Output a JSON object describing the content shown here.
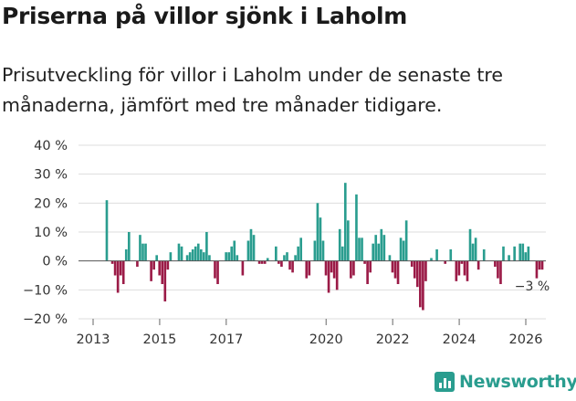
{
  "title": "Priserna på villor sjönk i Laholm",
  "subtitle": "Prisutveckling för villor i Laholm under de senaste tre månaderna, jämfört med tre månader tidigare.",
  "brand": {
    "name": "Newsworthy",
    "icon": "bar-chart-logo-icon"
  },
  "colors": {
    "positive": "#2a9d8f",
    "negative": "#9b1b47",
    "grid": "#dddddd",
    "text": "#333333"
  },
  "chart_data": {
    "type": "bar",
    "title": "Prisutveckling för villor i Laholm",
    "unit": "%",
    "ylim": [
      -20,
      40
    ],
    "yticks": [
      -20,
      -10,
      0,
      10,
      20,
      30,
      40
    ],
    "ytick_labels": [
      "−20 %",
      "−10 %",
      "0 %",
      "10 %",
      "20 %",
      "30 %",
      "40 %"
    ],
    "xticks": [
      2013,
      2015,
      2017,
      2020,
      2022,
      2024,
      2026
    ],
    "xtick_labels": [
      "2013",
      "2015",
      "2017",
      "2020",
      "2022",
      "2024",
      "2026"
    ],
    "x_start": {
      "year": 2013,
      "month": 6
    },
    "grid": true,
    "annotation": {
      "label": "−3 %",
      "value": -3
    },
    "values": [
      21,
      0,
      -1,
      -5,
      -11,
      -5,
      -8,
      4,
      10,
      0,
      0,
      -2,
      9,
      6,
      6,
      0,
      -7,
      -3,
      2,
      -5,
      -8,
      -14,
      -3,
      3,
      0,
      0,
      6,
      5,
      0,
      2,
      3,
      4,
      5,
      6,
      4,
      3,
      10,
      2,
      0,
      -6,
      -8,
      0,
      0,
      3,
      3,
      5,
      7,
      2,
      0,
      -5,
      0,
      7,
      11,
      9,
      0,
      -1,
      -1,
      -1,
      1,
      0,
      0,
      5,
      -1,
      -2,
      2,
      3,
      -3,
      -4,
      2,
      5,
      8,
      0,
      -6,
      -5,
      0,
      7,
      20,
      15,
      7,
      -5,
      -11,
      -4,
      -6,
      -10,
      11,
      5,
      27,
      14,
      -6,
      -5,
      23,
      8,
      8,
      -1,
      -8,
      -4,
      6,
      9,
      6,
      11,
      9,
      0,
      2,
      -4,
      -6,
      -8,
      8,
      7,
      14,
      0,
      -2,
      -6,
      -9,
      -16,
      -17,
      -7,
      0,
      1,
      0,
      4,
      0,
      0,
      -1,
      0,
      4,
      0,
      -7,
      -5,
      -1,
      -5,
      -7,
      11,
      6,
      8,
      -3,
      0,
      4,
      0,
      0,
      0,
      -2,
      -6,
      -8,
      5,
      0,
      2,
      0,
      5,
      0,
      6,
      6,
      3,
      5,
      0,
      0,
      -6,
      -3,
      -3
    ]
  }
}
